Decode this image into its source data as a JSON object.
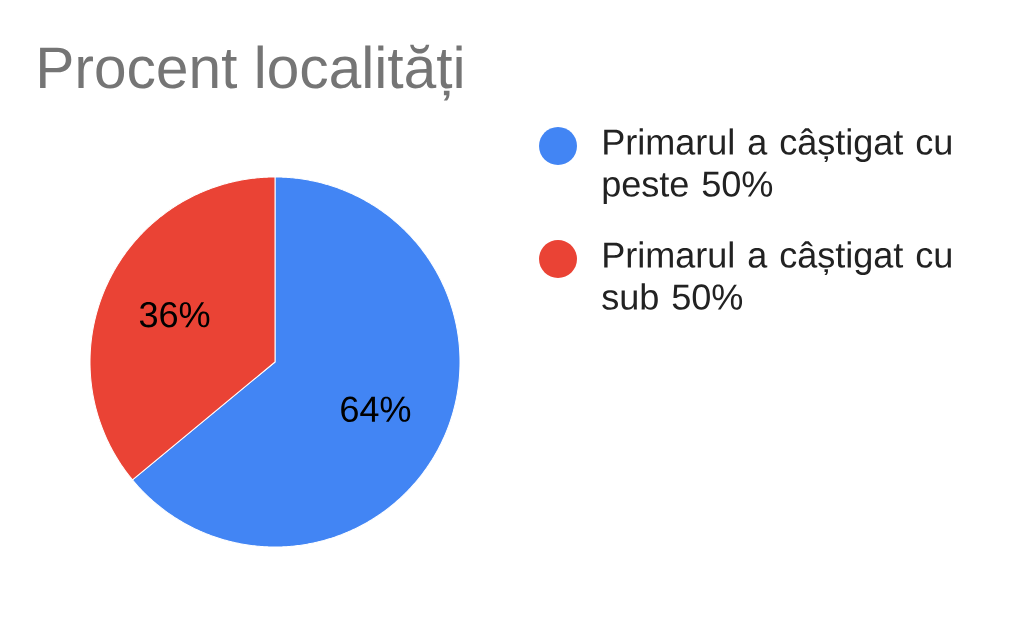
{
  "chart_data": {
    "type": "pie",
    "title": "Procent localități",
    "categories": [
      "Primarul a câștigat cu peste 50%",
      "Primarul a câștigat cu sub 50%"
    ],
    "values": [
      64,
      36
    ],
    "colors": [
      "#4285f4",
      "#ea4335"
    ],
    "value_labels": [
      "64%",
      "36%"
    ],
    "legend": "right"
  }
}
